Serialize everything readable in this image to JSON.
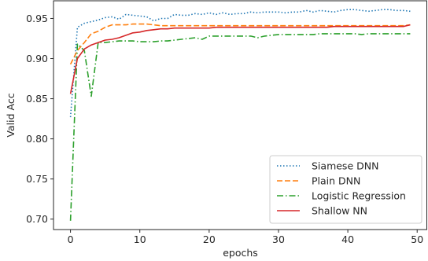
{
  "chart_data": {
    "type": "line",
    "title": "",
    "xlabel": "epochs",
    "ylabel": "Valid Acc",
    "xlim": [
      -2.45,
      51.45
    ],
    "ylim": [
      0.687,
      0.972
    ],
    "xticks": [
      0,
      10,
      20,
      30,
      40,
      50
    ],
    "yticks": [
      0.7,
      0.75,
      0.8,
      0.85,
      0.9,
      0.95
    ],
    "xtick_labels": [
      "0",
      "10",
      "20",
      "30",
      "40",
      "50"
    ],
    "ytick_labels": [
      "0.70",
      "0.75",
      "0.80",
      "0.85",
      "0.90",
      "0.95"
    ],
    "grid": false,
    "legend_position": "bottom-right",
    "x": [
      0,
      1,
      2,
      3,
      4,
      5,
      6,
      7,
      8,
      9,
      10,
      11,
      12,
      13,
      14,
      15,
      16,
      17,
      18,
      19,
      20,
      21,
      22,
      23,
      24,
      25,
      26,
      27,
      28,
      29,
      30,
      31,
      32,
      33,
      34,
      35,
      36,
      37,
      38,
      39,
      40,
      41,
      42,
      43,
      44,
      45,
      46,
      47,
      48,
      49
    ],
    "series": [
      {
        "name": "Siamese DNN",
        "color": "#1f77b4",
        "dash": "dotted",
        "values": [
          0.827,
          0.939,
          0.944,
          0.946,
          0.948,
          0.951,
          0.952,
          0.949,
          0.955,
          0.954,
          0.953,
          0.952,
          0.947,
          0.95,
          0.95,
          0.955,
          0.954,
          0.954,
          0.956,
          0.955,
          0.957,
          0.955,
          0.957,
          0.955,
          0.956,
          0.956,
          0.958,
          0.957,
          0.958,
          0.958,
          0.958,
          0.957,
          0.958,
          0.958,
          0.96,
          0.958,
          0.96,
          0.959,
          0.958,
          0.96,
          0.961,
          0.961,
          0.96,
          0.959,
          0.96,
          0.961,
          0.961,
          0.96,
          0.96,
          0.959
        ]
      },
      {
        "name": "Plain DNN",
        "color": "#ff7f0e",
        "dash": "dashed",
        "values": [
          0.893,
          0.91,
          0.92,
          0.931,
          0.934,
          0.939,
          0.942,
          0.942,
          0.942,
          0.943,
          0.943,
          0.943,
          0.942,
          0.941,
          0.941,
          0.941,
          0.941,
          0.941,
          0.941,
          0.941,
          0.941,
          0.941,
          0.941,
          0.941,
          0.941,
          0.941,
          0.941,
          0.941,
          0.941,
          0.941,
          0.941,
          0.941,
          0.941,
          0.941,
          0.941,
          0.941,
          0.941,
          0.941,
          0.941,
          0.941,
          0.941,
          0.941,
          0.941,
          0.941,
          0.941,
          0.941,
          0.941,
          0.941,
          0.941,
          0.942
        ]
      },
      {
        "name": "Logistic Regression",
        "color": "#2ca02c",
        "dash": "dashdot",
        "values": [
          0.698,
          0.918,
          0.91,
          0.853,
          0.92,
          0.92,
          0.921,
          0.922,
          0.922,
          0.922,
          0.921,
          0.921,
          0.921,
          0.922,
          0.922,
          0.923,
          0.924,
          0.925,
          0.926,
          0.924,
          0.928,
          0.928,
          0.928,
          0.928,
          0.928,
          0.928,
          0.928,
          0.926,
          0.928,
          0.929,
          0.93,
          0.93,
          0.93,
          0.93,
          0.93,
          0.93,
          0.931,
          0.931,
          0.931,
          0.931,
          0.931,
          0.931,
          0.93,
          0.931,
          0.931,
          0.931,
          0.931,
          0.931,
          0.931,
          0.931
        ]
      },
      {
        "name": "Shallow NN",
        "color": "#d62728",
        "dash": "solid",
        "values": [
          0.856,
          0.9,
          0.912,
          0.917,
          0.92,
          0.923,
          0.924,
          0.926,
          0.929,
          0.932,
          0.933,
          0.935,
          0.936,
          0.937,
          0.937,
          0.938,
          0.938,
          0.938,
          0.938,
          0.938,
          0.938,
          0.939,
          0.939,
          0.939,
          0.939,
          0.939,
          0.939,
          0.939,
          0.939,
          0.939,
          0.939,
          0.939,
          0.939,
          0.939,
          0.939,
          0.939,
          0.939,
          0.939,
          0.94,
          0.94,
          0.94,
          0.94,
          0.94,
          0.94,
          0.94,
          0.94,
          0.94,
          0.94,
          0.94,
          0.942
        ]
      }
    ]
  }
}
